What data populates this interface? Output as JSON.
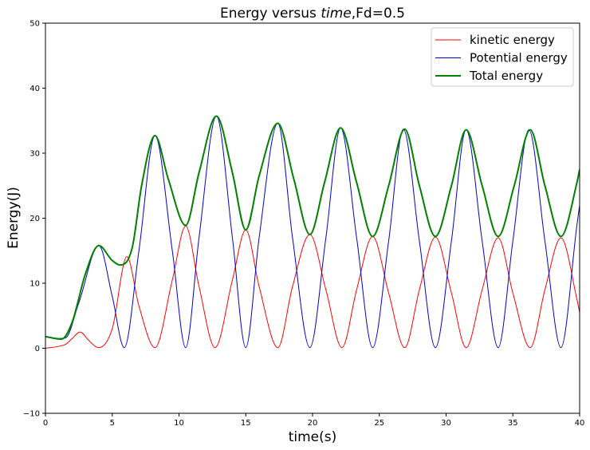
{
  "chart_data": {
    "type": "line",
    "title": {
      "prefix": "Energy versus ",
      "italic": "time",
      "suffix": ",Fd=0.5"
    },
    "xlabel": "time(s)",
    "ylabel": "Energy(J)",
    "xlim": [
      0,
      40
    ],
    "ylim": [
      -10,
      50
    ],
    "xticks": [
      0,
      5,
      10,
      15,
      20,
      25,
      30,
      35,
      40
    ],
    "yticks": [
      -10,
      0,
      10,
      20,
      30,
      40,
      50
    ],
    "grid": false,
    "legend_position": "top-right",
    "series": [
      {
        "name": "kinetic energy",
        "color": "#ff0000",
        "x": [
          0,
          1,
          1.5,
          2,
          2.6,
          3.2,
          3.8,
          4.0,
          5.0,
          6.1,
          7.0,
          8.2,
          9.5,
          10.5,
          11.5,
          12.7,
          14.0,
          15.0,
          16.0,
          17.4,
          18.5,
          19.8,
          21.0,
          22.2,
          23.3,
          24.5,
          25.7,
          26.9,
          28.0,
          29.2,
          30.4,
          31.5,
          32.7,
          33.9,
          35.0,
          36.3,
          37.4,
          38.6,
          39.8,
          40.0
        ],
        "y": [
          0,
          0.3,
          0.6,
          1.5,
          2.5,
          1.3,
          0.2,
          0.1,
          3.0,
          14.1,
          6.5,
          0.1,
          10.5,
          18.8,
          9.5,
          0.1,
          10.5,
          18.2,
          9.5,
          0.1,
          9.5,
          17.5,
          9.0,
          0.1,
          9.0,
          17.2,
          8.5,
          0.1,
          9.0,
          17.1,
          8.5,
          0.1,
          9.0,
          17.0,
          8.5,
          0.1,
          9.0,
          17.0,
          7.5,
          5.5
        ]
      },
      {
        "name": "Potential energy",
        "color": "#0000cc",
        "x": [
          0,
          0.8,
          1.5,
          2.5,
          4.0,
          5.0,
          5.9,
          7.0,
          8.2,
          9.5,
          10.5,
          11.5,
          12.8,
          14.0,
          15.0,
          16.0,
          17.4,
          18.5,
          19.8,
          21.0,
          22.1,
          23.3,
          24.5,
          25.7,
          26.8,
          28.0,
          29.2,
          30.4,
          31.5,
          32.7,
          33.9,
          35.0,
          36.2,
          37.4,
          38.6,
          39.8,
          40.0
        ],
        "y": [
          1.8,
          1.5,
          1.6,
          7.0,
          15.8,
          8.0,
          0.1,
          15.0,
          32.7,
          15.0,
          0.1,
          17.0,
          35.7,
          17.0,
          0.1,
          17.0,
          34.6,
          17.0,
          0.1,
          17.0,
          33.9,
          17.0,
          0.1,
          16.5,
          33.7,
          16.5,
          0.1,
          16.5,
          33.6,
          16.5,
          0.1,
          16.5,
          33.6,
          16.5,
          0.1,
          19.0,
          22.0
        ]
      },
      {
        "name": "Total energy",
        "color": "#008000",
        "x": [
          0,
          1.2,
          2.0,
          3.0,
          4.0,
          5.0,
          5.6,
          6.5,
          7.2,
          8.2,
          9.2,
          10.5,
          11.5,
          12.8,
          14.0,
          15.0,
          16.0,
          17.4,
          18.6,
          19.8,
          20.9,
          22.1,
          23.3,
          24.5,
          25.7,
          26.9,
          28.0,
          29.2,
          30.4,
          31.5,
          32.7,
          33.9,
          35.1,
          36.3,
          37.4,
          38.6,
          39.8,
          40.0
        ],
        "y": [
          1.8,
          1.4,
          4.0,
          11.5,
          15.8,
          13.5,
          12.8,
          15.5,
          25.0,
          32.7,
          26.0,
          18.9,
          27.0,
          35.7,
          27.0,
          18.2,
          26.5,
          34.6,
          26.0,
          17.5,
          25.5,
          33.9,
          25.5,
          17.2,
          25.0,
          33.7,
          25.0,
          17.2,
          25.0,
          33.6,
          25.0,
          17.2,
          25.0,
          33.6,
          25.0,
          17.2,
          25.5,
          27.5
        ]
      }
    ]
  }
}
